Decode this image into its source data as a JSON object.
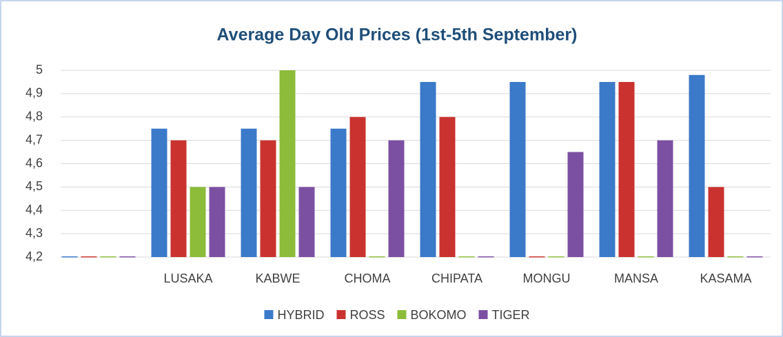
{
  "chart_data": {
    "type": "bar",
    "title": "Average Day Old Prices (1st-5th September)",
    "categories": [
      null,
      "LUSAKA",
      "KABWE",
      "CHOMA",
      "CHIPATA",
      "MONGU",
      "MANSA",
      "KASAMA"
    ],
    "series": [
      {
        "name": "HYBRID",
        "color": "#3b79c9",
        "values": [
          4.2,
          4.75,
          4.75,
          4.75,
          4.95,
          4.95,
          4.95,
          4.98
        ]
      },
      {
        "name": "ROSS",
        "color": "#c9322e",
        "values": [
          4.2,
          4.7,
          4.7,
          4.8,
          4.8,
          4.2,
          4.95,
          4.5
        ]
      },
      {
        "name": "BOKOMO",
        "color": "#8cbc3a",
        "values": [
          4.2,
          4.5,
          5,
          4.2,
          4.2,
          4.2,
          4.2,
          4.2
        ]
      },
      {
        "name": "TIGER",
        "color": "#7b50a2",
        "values": [
          4.2,
          4.5,
          4.5,
          4.7,
          4.2,
          4.65,
          4.7,
          4.2
        ]
      }
    ],
    "ylim": [
      4.2,
      5
    ],
    "yticks": [
      {
        "value": 4.2,
        "label": "4,2"
      },
      {
        "value": 4.3,
        "label": "4,3"
      },
      {
        "value": 4.4,
        "label": "4,4"
      },
      {
        "value": 4.5,
        "label": "4,5"
      },
      {
        "value": 4.6,
        "label": "4,6"
      },
      {
        "value": 4.7,
        "label": "4,7"
      },
      {
        "value": 4.8,
        "label": "4,8"
      },
      {
        "value": 4.9,
        "label": "4,9"
      },
      5
    ],
    "grid": true,
    "legend": "bottom"
  }
}
